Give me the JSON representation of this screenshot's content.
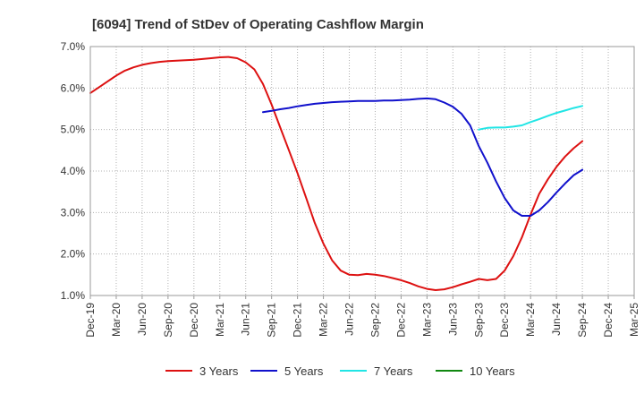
{
  "chart_data": {
    "type": "line",
    "title": "[6094]  Trend of StDev of Operating Cashflow Margin",
    "xlabel": "",
    "ylabel": "",
    "ylim": [
      1.0,
      7.0
    ],
    "y_ticks": [
      "1.0%",
      "2.0%",
      "3.0%",
      "4.0%",
      "5.0%",
      "6.0%",
      "7.0%"
    ],
    "x_ticks": [
      "Dec-19",
      "Mar-20",
      "Jun-20",
      "Sep-20",
      "Dec-20",
      "Mar-21",
      "Jun-21",
      "Sep-21",
      "Dec-21",
      "Mar-22",
      "Jun-22",
      "Sep-22",
      "Dec-22",
      "Mar-23",
      "Jun-23",
      "Sep-23",
      "Dec-23",
      "Mar-24",
      "Jun-24",
      "Sep-24",
      "Dec-24",
      "Mar-25"
    ],
    "grid": "both-dotted",
    "legend_position": "bottom",
    "series": [
      {
        "name": "3 Years",
        "color": "#dd1111",
        "points": [
          [
            "Dec-19",
            5.88
          ],
          [
            "Jan-20",
            6.02
          ],
          [
            "Feb-20",
            6.16
          ],
          [
            "Mar-20",
            6.3
          ],
          [
            "Apr-20",
            6.42
          ],
          [
            "May-20",
            6.5
          ],
          [
            "Jun-20",
            6.56
          ],
          [
            "Jul-20",
            6.6
          ],
          [
            "Aug-20",
            6.63
          ],
          [
            "Sep-20",
            6.65
          ],
          [
            "Oct-20",
            6.66
          ],
          [
            "Nov-20",
            6.67
          ],
          [
            "Dec-20",
            6.68
          ],
          [
            "Jan-21",
            6.7
          ],
          [
            "Feb-21",
            6.72
          ],
          [
            "Mar-21",
            6.74
          ],
          [
            "Apr-21",
            6.75
          ],
          [
            "May-21",
            6.72
          ],
          [
            "Jun-21",
            6.62
          ],
          [
            "Jul-21",
            6.45
          ],
          [
            "Aug-21",
            6.1
          ],
          [
            "Sep-21",
            5.6
          ],
          [
            "Oct-21",
            5.05
          ],
          [
            "Nov-21",
            4.5
          ],
          [
            "Dec-21",
            3.95
          ],
          [
            "Jan-22",
            3.35
          ],
          [
            "Feb-22",
            2.75
          ],
          [
            "Mar-22",
            2.25
          ],
          [
            "Apr-22",
            1.85
          ],
          [
            "May-22",
            1.6
          ],
          [
            "Jun-22",
            1.5
          ],
          [
            "Jul-22",
            1.49
          ],
          [
            "Aug-22",
            1.52
          ],
          [
            "Sep-22",
            1.5
          ],
          [
            "Oct-22",
            1.47
          ],
          [
            "Nov-22",
            1.42
          ],
          [
            "Dec-22",
            1.37
          ],
          [
            "Jan-23",
            1.3
          ],
          [
            "Feb-23",
            1.22
          ],
          [
            "Mar-23",
            1.16
          ],
          [
            "Apr-23",
            1.13
          ],
          [
            "May-23",
            1.15
          ],
          [
            "Jun-23",
            1.2
          ],
          [
            "Jul-23",
            1.27
          ],
          [
            "Aug-23",
            1.33
          ],
          [
            "Sep-23",
            1.4
          ],
          [
            "Oct-23",
            1.37
          ],
          [
            "Nov-23",
            1.4
          ],
          [
            "Dec-23",
            1.6
          ],
          [
            "Jan-24",
            1.95
          ],
          [
            "Feb-24",
            2.4
          ],
          [
            "Mar-24",
            2.95
          ],
          [
            "Apr-24",
            3.45
          ],
          [
            "May-24",
            3.8
          ],
          [
            "Jun-24",
            4.1
          ],
          [
            "Jul-24",
            4.35
          ],
          [
            "Aug-24",
            4.55
          ],
          [
            "Sep-24",
            4.72
          ]
        ]
      },
      {
        "name": "5 Years",
        "color": "#1111cc",
        "points": [
          [
            "Aug-21",
            5.42
          ],
          [
            "Sep-21",
            5.45
          ],
          [
            "Oct-21",
            5.49
          ],
          [
            "Nov-21",
            5.52
          ],
          [
            "Dec-21",
            5.56
          ],
          [
            "Jan-22",
            5.59
          ],
          [
            "Feb-22",
            5.62
          ],
          [
            "Mar-22",
            5.64
          ],
          [
            "Apr-22",
            5.66
          ],
          [
            "May-22",
            5.67
          ],
          [
            "Jun-22",
            5.68
          ],
          [
            "Jul-22",
            5.69
          ],
          [
            "Aug-22",
            5.69
          ],
          [
            "Sep-22",
            5.69
          ],
          [
            "Oct-22",
            5.7
          ],
          [
            "Nov-22",
            5.7
          ],
          [
            "Dec-22",
            5.71
          ],
          [
            "Jan-23",
            5.72
          ],
          [
            "Feb-23",
            5.74
          ],
          [
            "Mar-23",
            5.75
          ],
          [
            "Apr-23",
            5.73
          ],
          [
            "May-23",
            5.65
          ],
          [
            "Jun-23",
            5.55
          ],
          [
            "Jul-23",
            5.38
          ],
          [
            "Aug-23",
            5.1
          ],
          [
            "Sep-23",
            4.6
          ],
          [
            "Oct-23",
            4.2
          ],
          [
            "Nov-23",
            3.75
          ],
          [
            "Dec-23",
            3.35
          ],
          [
            "Jan-24",
            3.05
          ],
          [
            "Feb-24",
            2.92
          ],
          [
            "Mar-24",
            2.92
          ],
          [
            "Apr-24",
            3.05
          ],
          [
            "May-24",
            3.25
          ],
          [
            "Jun-24",
            3.48
          ],
          [
            "Jul-24",
            3.7
          ],
          [
            "Aug-24",
            3.9
          ],
          [
            "Sep-24",
            4.03
          ]
        ]
      },
      {
        "name": "7 Years",
        "color": "#22e5e5",
        "points": [
          [
            "Sep-23",
            5.0
          ],
          [
            "Oct-23",
            5.04
          ],
          [
            "Nov-23",
            5.05
          ],
          [
            "Dec-23",
            5.05
          ],
          [
            "Jan-24",
            5.07
          ],
          [
            "Feb-24",
            5.1
          ],
          [
            "Mar-24",
            5.18
          ],
          [
            "Apr-24",
            5.25
          ],
          [
            "May-24",
            5.33
          ],
          [
            "Jun-24",
            5.4
          ],
          [
            "Jul-24",
            5.46
          ],
          [
            "Aug-24",
            5.52
          ],
          [
            "Sep-24",
            5.57
          ]
        ]
      },
      {
        "name": "10 Years",
        "color": "#118811",
        "points": []
      }
    ]
  }
}
